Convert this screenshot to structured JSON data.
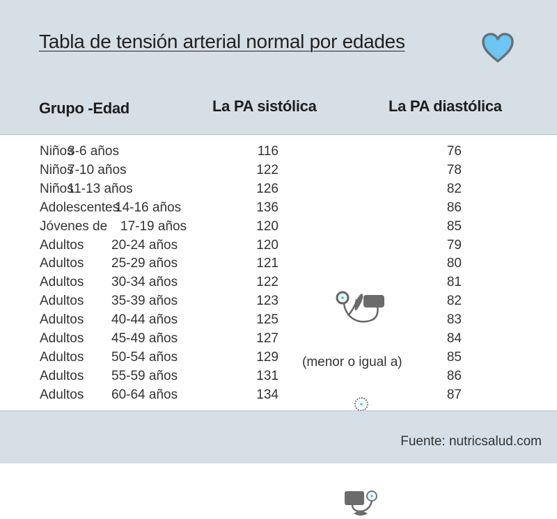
{
  "header": {
    "title": "Tabla de tensión arterial normal por edades",
    "columns": {
      "group": "Grupo -Edad",
      "systolic": "La PA sistólica",
      "diastolic": "La PA diastólica"
    },
    "icon": "heart-icon",
    "heart_fill": "#6cc5f3",
    "heart_stroke": "#66727a"
  },
  "rows": [
    {
      "category": "Niños",
      "ages": "3-6 años",
      "systolic": "116",
      "diastolic": "76"
    },
    {
      "category": "Niños",
      "ages": "7-10 años",
      "systolic": "122",
      "diastolic": "78"
    },
    {
      "category": "Niños",
      "ages": "11-13 años",
      "systolic": "126",
      "diastolic": "82"
    },
    {
      "category": "Adolescentes",
      "ages": "14-16 años",
      "systolic": "136",
      "diastolic": "86"
    },
    {
      "category": "Jóvenes de",
      "ages": "17-19 años",
      "systolic": "120",
      "diastolic": "85"
    },
    {
      "category": "Adultos",
      "ages": "20-24 años",
      "systolic": "120",
      "diastolic": "79"
    },
    {
      "category": "Adultos",
      "ages": "25-29 años",
      "systolic": "121",
      "diastolic": "80"
    },
    {
      "category": "Adultos",
      "ages": "30-34 años",
      "systolic": "122",
      "diastolic": "81"
    },
    {
      "category": "Adultos",
      "ages": "35-39 años",
      "systolic": "123",
      "diastolic": "82"
    },
    {
      "category": "Adultos",
      "ages": "40-44 años",
      "systolic": "125",
      "diastolic": "83"
    },
    {
      "category": "Adultos",
      "ages": "45-49 años",
      "systolic": "127",
      "diastolic": "84"
    },
    {
      "category": "Adultos",
      "ages": "50-54 años",
      "systolic": "129",
      "diastolic": "85"
    },
    {
      "category": "Adultos",
      "ages": "55-59 años",
      "systolic": "131",
      "diastolic": "86"
    },
    {
      "category": "Adultos",
      "ages": "60-64 años",
      "systolic": "134",
      "diastolic": "87"
    }
  ],
  "note": "(menor o igual a)",
  "icons": [
    "sphygmomanometer-cuff-icon",
    "pressure-gauge-bulb-icon",
    "blood-pressure-monitor-icon"
  ],
  "footer": {
    "source": "Fuente: nutricsalud.com"
  }
}
